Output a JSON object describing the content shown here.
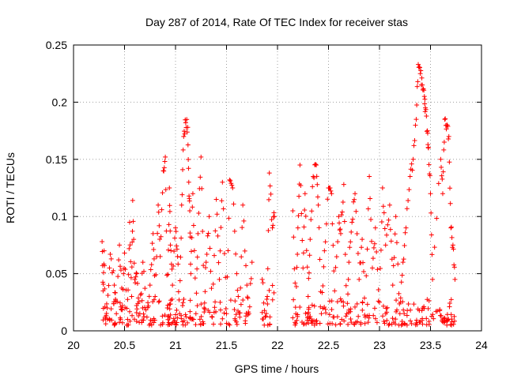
{
  "chart_data": {
    "type": "scatter",
    "title": "Day 287 of 2014, Rate Of TEC Index for receiver stas",
    "xlabel": "GPS time / hours",
    "ylabel": "ROTI / TECUs",
    "xlim": [
      20,
      24
    ],
    "ylim": [
      0,
      0.25
    ],
    "grid": true,
    "marker": "+",
    "color": "#ff0000",
    "xticks": [
      20,
      20.5,
      21,
      21.5,
      22,
      22.5,
      23,
      23.5,
      24
    ],
    "yticks": [
      0,
      0.05,
      0.1,
      0.15,
      0.2,
      0.25
    ],
    "xtick_labels": [
      "20",
      "20.5",
      "21",
      "21.5",
      "22",
      "22.5",
      "23",
      "23.5",
      "24"
    ],
    "ytick_labels": [
      "0",
      "0.05",
      "0.1",
      "0.15",
      "0.2",
      "0.25"
    ],
    "series": [
      {
        "name": "ROTI",
        "x": [
          20.28,
          20.29,
          20.3,
          20.31,
          20.33,
          20.36,
          20.4,
          20.42,
          20.45,
          20.48,
          20.5,
          20.53,
          20.55,
          20.57,
          20.58,
          20.6,
          20.62,
          20.65,
          20.68,
          20.72,
          20.75,
          20.78,
          20.8,
          20.83,
          20.85,
          20.88,
          20.9,
          20.92,
          20.94,
          20.95,
          20.97,
          21.0,
          21.02,
          21.04,
          21.06,
          21.08,
          21.1,
          21.12,
          21.13,
          21.14,
          21.15,
          21.17,
          21.2,
          21.22,
          21.25,
          21.28,
          21.3,
          21.33,
          21.36,
          21.4,
          21.43,
          21.46,
          21.5,
          21.53,
          21.56,
          21.6,
          21.63,
          21.66,
          21.7,
          21.72,
          21.75,
          21.85,
          21.88,
          21.9,
          21.92,
          21.95,
          21.97,
          22.15,
          22.18,
          22.2,
          22.22,
          22.25,
          22.27,
          22.3,
          22.32,
          22.35,
          22.38,
          22.4,
          22.43,
          22.46,
          22.5,
          22.53,
          22.56,
          22.6,
          22.62,
          22.65,
          22.68,
          22.7,
          22.73,
          22.76,
          22.8,
          22.83,
          22.86,
          22.9,
          22.93,
          22.96,
          23.0,
          23.03,
          23.06,
          23.1,
          23.13,
          23.16,
          23.2,
          23.23,
          23.26,
          23.3,
          23.33,
          23.36,
          23.38,
          23.4,
          23.42,
          23.44,
          23.45,
          23.47,
          23.48,
          23.5,
          23.52,
          23.6,
          23.62,
          23.64,
          23.66,
          23.68,
          23.7,
          23.72,
          23.74
        ],
        "y": [
          0.078,
          0.035,
          0.07,
          0.012,
          0.02,
          0.067,
          0.04,
          0.015,
          0.075,
          0.022,
          0.068,
          0.01,
          0.095,
          0.03,
          0.114,
          0.045,
          0.05,
          0.015,
          0.06,
          0.012,
          0.04,
          0.085,
          0.03,
          0.11,
          0.065,
          0.14,
          0.152,
          0.02,
          0.125,
          0.075,
          0.04,
          0.09,
          0.065,
          0.015,
          0.11,
          0.17,
          0.182,
          0.178,
          0.13,
          0.105,
          0.05,
          0.12,
          0.015,
          0.085,
          0.152,
          0.02,
          0.06,
          0.1,
          0.012,
          0.115,
          0.045,
          0.13,
          0.015,
          0.132,
          0.125,
          0.05,
          0.012,
          0.11,
          0.04,
          0.015,
          0.06,
          0.045,
          0.012,
          0.03,
          0.138,
          0.09,
          0.1,
          0.105,
          0.015,
          0.09,
          0.145,
          0.055,
          0.12,
          0.03,
          0.08,
          0.135,
          0.145,
          0.11,
          0.015,
          0.07,
          0.125,
          0.12,
          0.035,
          0.1,
          0.085,
          0.128,
          0.015,
          0.06,
          0.095,
          0.12,
          0.045,
          0.08,
          0.012,
          0.135,
          0.055,
          0.09,
          0.025,
          0.125,
          0.075,
          0.11,
          0.04,
          0.1,
          0.015,
          0.06,
          0.09,
          0.135,
          0.15,
          0.185,
          0.233,
          0.225,
          0.215,
          0.205,
          0.195,
          0.175,
          0.16,
          0.12,
          0.045,
          0.15,
          0.12,
          0.185,
          0.18,
          0.17,
          0.09,
          0.075,
          0.045
        ],
        "density_clusters": [
          {
            "x_range": [
              20.28,
              21.75
            ],
            "y_range": [
              0.005,
              0.028
            ]
          },
          {
            "x_range": [
              21.85,
              21.97
            ],
            "y_range": [
              0.005,
              0.04
            ]
          },
          {
            "x_range": [
              22.15,
              23.74
            ],
            "y_range": [
              0.005,
              0.028
            ]
          },
          {
            "x_range": [
              23.6,
              23.74
            ],
            "y_range": [
              0.008,
              0.015
            ]
          }
        ]
      }
    ]
  }
}
